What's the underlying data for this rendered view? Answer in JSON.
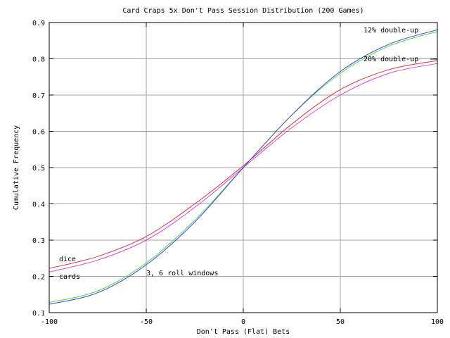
{
  "chart_data": {
    "type": "line",
    "title": "Card Craps 5x Don't Pass Session Distribution (200 Games)",
    "xlabel": "Don't Pass (Flat) Bets",
    "ylabel": "Cumulative Frequency",
    "xlim": [
      -100,
      100
    ],
    "ylim": [
      0.1,
      0.9
    ],
    "xticks": [
      "-100",
      "-50",
      "0",
      "50",
      "100"
    ],
    "yticks": [
      "0.1",
      "0.2",
      "0.3",
      "0.4",
      "0.5",
      "0.6",
      "0.7",
      "0.8",
      "0.9"
    ],
    "grid": true,
    "x": [
      -100,
      -75,
      -50,
      -25,
      0,
      25,
      50,
      75,
      100
    ],
    "series": [
      {
        "name": "dice 20% double-up",
        "color": "#e03030",
        "values": [
          0.222,
          0.255,
          0.31,
          0.4,
          0.505,
          0.62,
          0.715,
          0.77,
          0.795
        ]
      },
      {
        "name": "cards 20% double-up",
        "color": "#e040e0",
        "values": [
          0.212,
          0.245,
          0.3,
          0.39,
          0.5,
          0.61,
          0.7,
          0.76,
          0.787
        ]
      },
      {
        "name": "cards 12% double-up",
        "color": "#40e040",
        "values": [
          0.128,
          0.16,
          0.237,
          0.355,
          0.5,
          0.645,
          0.76,
          0.835,
          0.875
        ]
      },
      {
        "name": "dice 12% double-up",
        "color": "#4040e0",
        "values": [
          0.123,
          0.155,
          0.232,
          0.35,
          0.5,
          0.645,
          0.765,
          0.84,
          0.88
        ]
      }
    ],
    "annotations": [
      {
        "text": "12% double-up",
        "x": 60,
        "y": 0.88
      },
      {
        "text": "20% double-up",
        "x": 60,
        "y": 0.8
      },
      {
        "text": "dice",
        "x": -95,
        "y": 0.24
      },
      {
        "text": "cards",
        "x": -95,
        "y": 0.21
      },
      {
        "text": "3, 6 roll windows",
        "x": -50,
        "y": 0.21
      }
    ]
  }
}
